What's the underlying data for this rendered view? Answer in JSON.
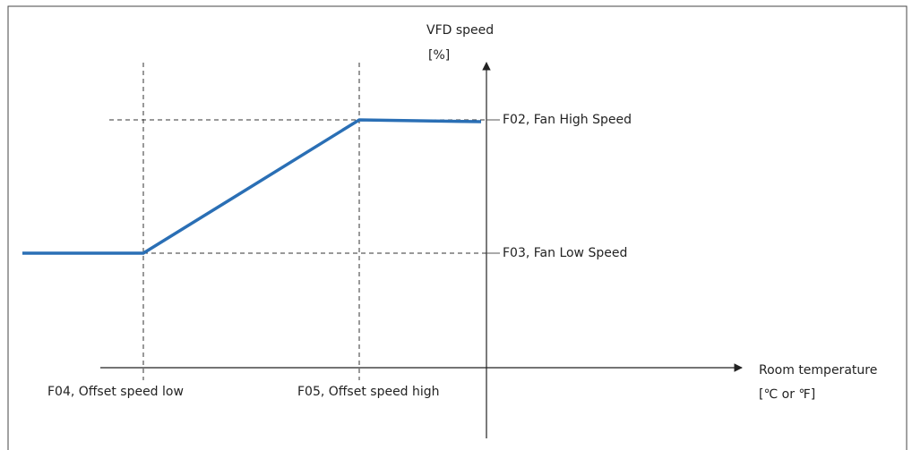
{
  "diagram": {
    "y_axis": {
      "label": "VFD speed",
      "unit": "[%]"
    },
    "x_axis": {
      "label": "Room temperature",
      "unit": "[℃ or ℉]"
    },
    "levels": {
      "high": "F02, Fan High Speed",
      "low": "F03, Fan Low Speed"
    },
    "offsets": {
      "low": "F04, Offset speed low",
      "high": "F05, Offset speed high"
    }
  }
}
